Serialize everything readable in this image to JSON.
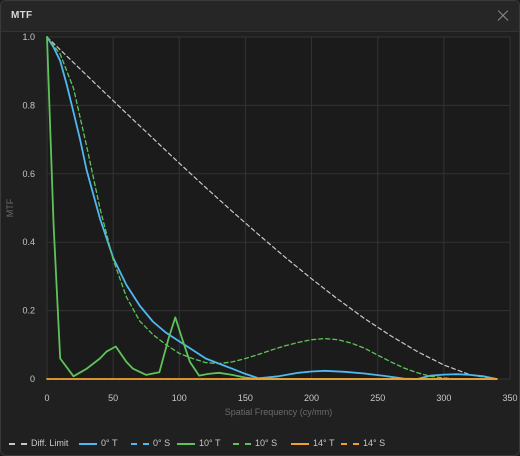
{
  "window": {
    "title": "MTF"
  },
  "chart_data": {
    "type": "line",
    "xlabel": "Spatial Frequency (cy/mm)",
    "ylabel": "MTF",
    "xlim": [
      0,
      350
    ],
    "ylim": [
      0,
      1.0
    ],
    "xticks": [
      0,
      50,
      100,
      150,
      200,
      250,
      300,
      350
    ],
    "yticks": [
      0,
      0.2,
      0.4,
      0.6,
      0.8,
      1.0
    ],
    "xtick_labels": [
      "0",
      "50",
      "100",
      "150",
      "200",
      "250",
      "300",
      "350"
    ],
    "ytick_labels": [
      "0",
      "0.2",
      "0.4",
      "0.6",
      "0.8",
      "1.0"
    ],
    "grid": true,
    "legend_position": "bottom",
    "series": [
      {
        "name": "Diff. Limit",
        "color": "#c8c8c8",
        "dash": "dashed",
        "x": [
          0,
          20,
          40,
          60,
          80,
          100,
          120,
          140,
          160,
          180,
          200,
          220,
          240,
          260,
          280,
          300,
          320,
          340
        ],
        "y": [
          1.0,
          0.925,
          0.851,
          0.777,
          0.704,
          0.631,
          0.56,
          0.49,
          0.422,
          0.356,
          0.293,
          0.233,
          0.177,
          0.126,
          0.08,
          0.041,
          0.012,
          0.0
        ]
      },
      {
        "name": "0° T",
        "color": "#4fb8f0",
        "dash": "solid",
        "x": [
          0,
          5,
          10,
          15,
          20,
          25,
          30,
          40,
          50,
          60,
          70,
          80,
          90,
          100,
          110,
          120,
          130,
          140,
          150,
          160,
          175,
          190,
          200,
          210,
          225,
          240,
          255,
          270,
          280,
          290,
          300,
          310,
          320,
          330,
          340
        ],
        "y": [
          1.0,
          0.97,
          0.93,
          0.86,
          0.78,
          0.7,
          0.61,
          0.47,
          0.355,
          0.275,
          0.215,
          0.168,
          0.135,
          0.11,
          0.085,
          0.06,
          0.045,
          0.03,
          0.015,
          0.002,
          0.008,
          0.018,
          0.022,
          0.024,
          0.021,
          0.016,
          0.009,
          0.001,
          0.0,
          0.01,
          0.013,
          0.014,
          0.012,
          0.008,
          0.0
        ]
      },
      {
        "name": "0° S",
        "color": "#4fb8f0",
        "dash": "dashed",
        "x": [],
        "y": []
      },
      {
        "name": "10° T",
        "color": "#5ec45a",
        "dash": "solid",
        "x": [
          0,
          5,
          10,
          20,
          30,
          40,
          45,
          52,
          60,
          65,
          75,
          85,
          92,
          97,
          102,
          108,
          115,
          122,
          130,
          140,
          150,
          160,
          180,
          200,
          250,
          300,
          340
        ],
        "y": [
          1.0,
          0.45,
          0.06,
          0.008,
          0.03,
          0.06,
          0.08,
          0.095,
          0.05,
          0.03,
          0.012,
          0.02,
          0.12,
          0.18,
          0.12,
          0.05,
          0.01,
          0.015,
          0.018,
          0.012,
          0.004,
          0.0,
          0.0,
          0.0,
          0.0,
          0.0,
          0.0
        ]
      },
      {
        "name": "10° S",
        "color": "#5ec45a",
        "dash": "dashed",
        "x": [
          0,
          10,
          20,
          30,
          40,
          50,
          60,
          70,
          80,
          90,
          100,
          110,
          120,
          130,
          140,
          150,
          160,
          170,
          180,
          190,
          200,
          210,
          220,
          230,
          240,
          250,
          260,
          270,
          280,
          290,
          300,
          310
        ],
        "y": [
          1.0,
          0.95,
          0.85,
          0.68,
          0.5,
          0.35,
          0.24,
          0.17,
          0.13,
          0.1,
          0.075,
          0.06,
          0.048,
          0.045,
          0.05,
          0.06,
          0.072,
          0.085,
          0.097,
          0.107,
          0.115,
          0.118,
          0.115,
          0.105,
          0.09,
          0.07,
          0.05,
          0.032,
          0.018,
          0.008,
          0.003,
          0.0
        ]
      },
      {
        "name": "14° T",
        "color": "#f0a030",
        "dash": "solid",
        "x": [
          0,
          340
        ],
        "y": [
          0.0,
          0.0
        ]
      },
      {
        "name": "14° S",
        "color": "#f0a030",
        "dash": "dashed",
        "x": [
          0,
          340
        ],
        "y": [
          0.0,
          0.0
        ]
      }
    ]
  }
}
